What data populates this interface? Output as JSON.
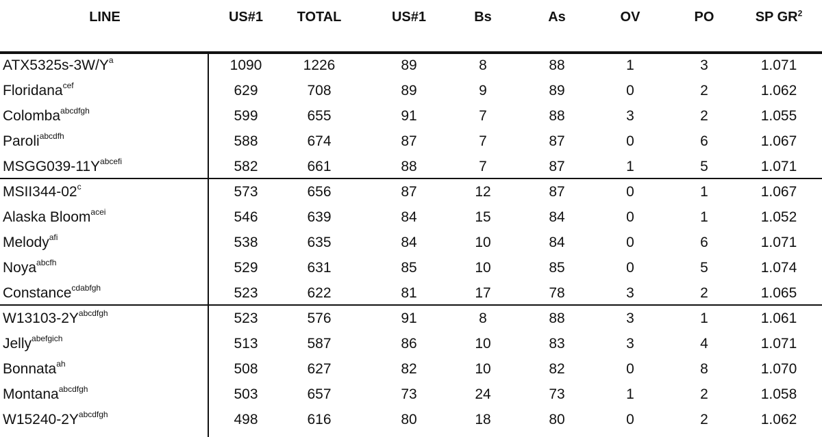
{
  "headers": {
    "line": "LINE",
    "us1_a": "US#1",
    "total": "TOTAL",
    "us1_b": "US#1",
    "bs": "Bs",
    "as": "As",
    "ov": "OV",
    "po": "PO",
    "spgr": "SP GR",
    "spgr_sup": "2"
  },
  "rows": [
    {
      "name": "ATX5325s-3W/Y",
      "sup": "a",
      "us1": "1090",
      "total": "1226",
      "us1pct": "89",
      "bs": "8",
      "as": "88",
      "ov": "1",
      "po": "3",
      "spgr": "1.071"
    },
    {
      "name": "Floridana",
      "sup": "cef",
      "us1": "629",
      "total": "708",
      "us1pct": "89",
      "bs": "9",
      "as": "89",
      "ov": "0",
      "po": "2",
      "spgr": "1.062"
    },
    {
      "name": "Colomba",
      "sup": "abcdfgh",
      "us1": "599",
      "total": "655",
      "us1pct": "91",
      "bs": "7",
      "as": "88",
      "ov": "3",
      "po": "2",
      "spgr": "1.055"
    },
    {
      "name": "Paroli",
      "sup": "abcdfh",
      "us1": "588",
      "total": "674",
      "us1pct": "87",
      "bs": "7",
      "as": "87",
      "ov": "0",
      "po": "6",
      "spgr": "1.067"
    },
    {
      "name": "MSGG039-11Y",
      "sup": "abcefi",
      "us1": "582",
      "total": "661",
      "us1pct": "88",
      "bs": "7",
      "as": "87",
      "ov": "1",
      "po": "5",
      "spgr": "1.071"
    },
    {
      "name": "MSII344-02",
      "sup": "c",
      "us1": "573",
      "total": "656",
      "us1pct": "87",
      "bs": "12",
      "as": "87",
      "ov": "0",
      "po": "1",
      "spgr": "1.067"
    },
    {
      "name": "Alaska Bloom",
      "sup": "acei",
      "us1": "546",
      "total": "639",
      "us1pct": "84",
      "bs": "15",
      "as": "84",
      "ov": "0",
      "po": "1",
      "spgr": "1.052"
    },
    {
      "name": "Melody",
      "sup": "afi",
      "us1": "538",
      "total": "635",
      "us1pct": "84",
      "bs": "10",
      "as": "84",
      "ov": "0",
      "po": "6",
      "spgr": "1.071"
    },
    {
      "name": "Noya",
      "sup": "abcfh",
      "us1": "529",
      "total": "631",
      "us1pct": "85",
      "bs": "10",
      "as": "85",
      "ov": "0",
      "po": "5",
      "spgr": "1.074"
    },
    {
      "name": "Constance",
      "sup": "cdabfgh",
      "us1": "523",
      "total": "622",
      "us1pct": "81",
      "bs": "17",
      "as": "78",
      "ov": "3",
      "po": "2",
      "spgr": "1.065"
    },
    {
      "name": "W13103-2Y",
      "sup": "abcdfgh",
      "us1": "523",
      "total": "576",
      "us1pct": "91",
      "bs": "8",
      "as": "88",
      "ov": "3",
      "po": "1",
      "spgr": "1.061"
    },
    {
      "name": "Jelly",
      "sup": "abefgich",
      "us1": "513",
      "total": "587",
      "us1pct": "86",
      "bs": "10",
      "as": "83",
      "ov": "3",
      "po": "4",
      "spgr": "1.071"
    },
    {
      "name": "Bonnata",
      "sup": "ah",
      "us1": "508",
      "total": "627",
      "us1pct": "82",
      "bs": "10",
      "as": "82",
      "ov": "0",
      "po": "8",
      "spgr": "1.070"
    },
    {
      "name": "Montana",
      "sup": "abcdfgh",
      "us1": "503",
      "total": "657",
      "us1pct": "73",
      "bs": "24",
      "as": "73",
      "ov": "1",
      "po": "2",
      "spgr": "1.058"
    },
    {
      "name": "W15240-2Y",
      "sup": "abcdfgh",
      "us1": "498",
      "total": "616",
      "us1pct": "80",
      "bs": "18",
      "as": "80",
      "ov": "0",
      "po": "2",
      "spgr": "1.062"
    }
  ]
}
